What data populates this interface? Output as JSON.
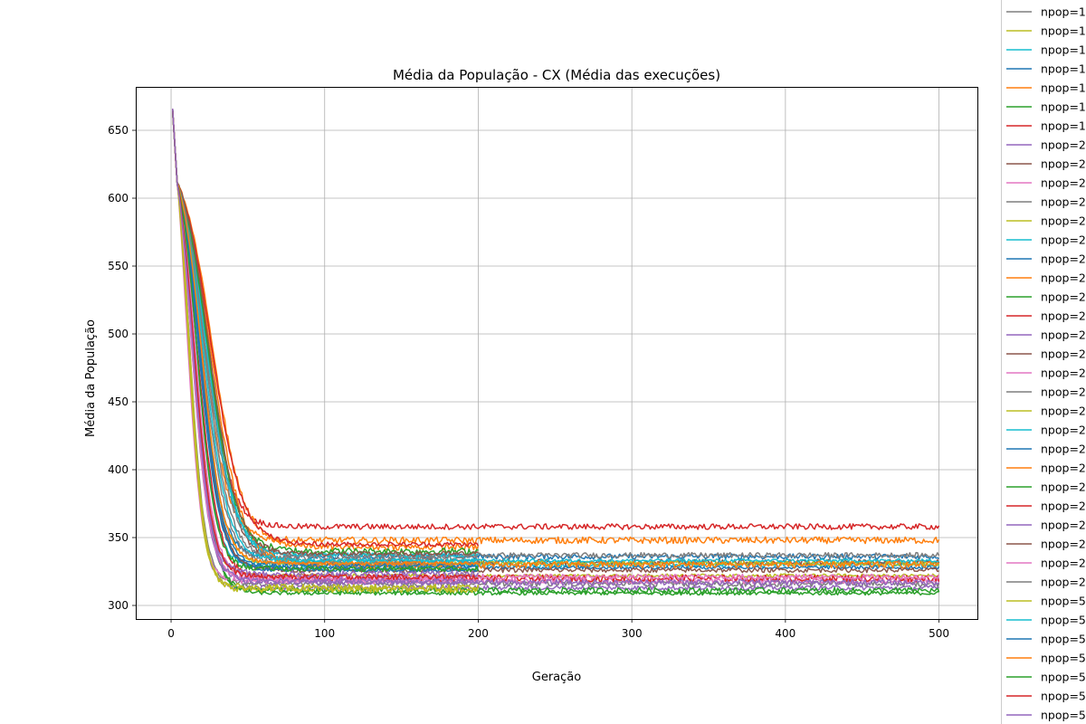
{
  "chart_data": {
    "type": "line",
    "title": "Média da População - CX (Média das execuções)",
    "xlabel": "Geração",
    "ylabel": "Média da População",
    "xlim": [
      -23,
      525
    ],
    "ylim": [
      290,
      682
    ],
    "xticks": [
      0,
      100,
      200,
      300,
      400,
      500
    ],
    "yticks": [
      300,
      350,
      400,
      450,
      500,
      550,
      600,
      650
    ],
    "grid": true,
    "legend_position": "right, outside plot (cut off)",
    "start_value": 665,
    "palette": [
      "#1f77b4",
      "#ff7f0e",
      "#2ca02c",
      "#d62728",
      "#9467bd",
      "#8c564b",
      "#e377c2",
      "#7f7f7f",
      "#bcbd22",
      "#17becf"
    ],
    "series": [
      {
        "label": "npop=1",
        "color": "#7f7f7f",
        "end_gen": 500,
        "final": 316,
        "mid": 12,
        "width": 5
      },
      {
        "label": "npop=1",
        "color": "#bcbd22",
        "end_gen": 500,
        "final": 322,
        "mid": 14,
        "width": 6
      },
      {
        "label": "npop=1",
        "color": "#17becf",
        "end_gen": 500,
        "final": 330,
        "mid": 17,
        "width": 6
      },
      {
        "label": "npop=1",
        "color": "#1f77b4",
        "end_gen": 500,
        "final": 336,
        "mid": 19,
        "width": 7
      },
      {
        "label": "npop=1",
        "color": "#ff7f0e",
        "end_gen": 500,
        "final": 348,
        "mid": 21,
        "width": 8
      },
      {
        "label": "npop=1",
        "color": "#2ca02c",
        "end_gen": 500,
        "final": 309,
        "mid": 16,
        "width": 6
      },
      {
        "label": "npop=1",
        "color": "#d62728",
        "end_gen": 500,
        "final": 358,
        "mid": 23,
        "width": 8
      },
      {
        "label": "npop=2",
        "color": "#9467bd",
        "end_gen": 500,
        "final": 313,
        "mid": 11,
        "width": 5
      },
      {
        "label": "npop=2",
        "color": "#8c564b",
        "end_gen": 500,
        "final": 332,
        "mid": 24,
        "width": 9
      },
      {
        "label": "npop=2",
        "color": "#e377c2",
        "end_gen": 500,
        "final": 318,
        "mid": 10,
        "width": 5
      },
      {
        "label": "npop=2",
        "color": "#7f7f7f",
        "end_gen": 500,
        "final": 337,
        "mid": 22,
        "width": 9
      },
      {
        "label": "npop=2",
        "color": "#bcbd22",
        "end_gen": 500,
        "final": 331,
        "mid": 20,
        "width": 7
      },
      {
        "label": "npop=2",
        "color": "#17becf",
        "end_gen": 500,
        "final": 333,
        "mid": 25,
        "width": 9
      },
      {
        "label": "npop=2",
        "color": "#1f77b4",
        "end_gen": 500,
        "final": 328,
        "mid": 18,
        "width": 7
      },
      {
        "label": "npop=2",
        "color": "#ff7f0e",
        "end_gen": 500,
        "final": 330,
        "mid": 26,
        "width": 10
      },
      {
        "label": "npop=2",
        "color": "#2ca02c",
        "end_gen": 500,
        "final": 311,
        "mid": 15,
        "width": 6
      },
      {
        "label": "npop=2",
        "color": "#d62728",
        "end_gen": 500,
        "final": 320,
        "mid": 17,
        "width": 7
      },
      {
        "label": "npop=2",
        "color": "#9467bd",
        "end_gen": 500,
        "final": 317,
        "mid": 13,
        "width": 6
      },
      {
        "label": "npop=2",
        "color": "#8c564b",
        "end_gen": 500,
        "final": 326,
        "mid": 19,
        "width": 7
      },
      {
        "label": "npop=2",
        "color": "#e377c2",
        "end_gen": 500,
        "final": 321,
        "mid": 16,
        "width": 6
      },
      {
        "label": "npop=2",
        "color": "#7f7f7f",
        "end_gen": 200,
        "final": 331,
        "mid": 20,
        "width": 8
      },
      {
        "label": "npop=2",
        "color": "#bcbd22",
        "end_gen": 200,
        "final": 312,
        "mid": 12,
        "width": 5
      },
      {
        "label": "npop=2",
        "color": "#17becf",
        "end_gen": 200,
        "final": 337,
        "mid": 23,
        "width": 9
      },
      {
        "label": "npop=2",
        "color": "#1f77b4",
        "end_gen": 200,
        "final": 326,
        "mid": 18,
        "width": 7
      },
      {
        "label": "npop=2",
        "color": "#ff7f0e",
        "end_gen": 200,
        "final": 343,
        "mid": 27,
        "width": 10
      },
      {
        "label": "npop=2",
        "color": "#2ca02c",
        "end_gen": 200,
        "final": 340,
        "mid": 24,
        "width": 9
      },
      {
        "label": "npop=2",
        "color": "#d62728",
        "end_gen": 200,
        "final": 345,
        "mid": 26,
        "width": 10
      },
      {
        "label": "npop=2",
        "color": "#9467bd",
        "end_gen": 200,
        "final": 323,
        "mid": 14,
        "width": 6
      },
      {
        "label": "npop=2",
        "color": "#8c564b",
        "end_gen": 200,
        "final": 338,
        "mid": 25,
        "width": 9
      },
      {
        "label": "npop=2",
        "color": "#e377c2",
        "end_gen": 200,
        "final": 319,
        "mid": 13,
        "width": 6
      },
      {
        "label": "npop=2",
        "color": "#7f7f7f",
        "end_gen": 200,
        "final": 335,
        "mid": 22,
        "width": 8
      },
      {
        "label": "npop=5",
        "color": "#bcbd22",
        "end_gen": 200,
        "final": 313,
        "mid": 11,
        "width": 5
      },
      {
        "label": "npop=5",
        "color": "#17becf",
        "end_gen": 200,
        "final": 333,
        "mid": 21,
        "width": 8
      },
      {
        "label": "npop=5",
        "color": "#1f77b4",
        "end_gen": 200,
        "final": 329,
        "mid": 19,
        "width": 7
      },
      {
        "label": "npop=5",
        "color": "#ff7f0e",
        "end_gen": 200,
        "final": 331,
        "mid": 20,
        "width": 7
      },
      {
        "label": "npop=5",
        "color": "#2ca02c",
        "end_gen": 200,
        "final": 327,
        "mid": 17,
        "width": 6
      },
      {
        "label": "npop=5",
        "color": "#d62728",
        "end_gen": 200,
        "final": 321,
        "mid": 15,
        "width": 6
      },
      {
        "label": "npop=5",
        "color": "#9467bd",
        "end_gen": 200,
        "final": 318,
        "mid": 14,
        "width": 6
      }
    ]
  }
}
